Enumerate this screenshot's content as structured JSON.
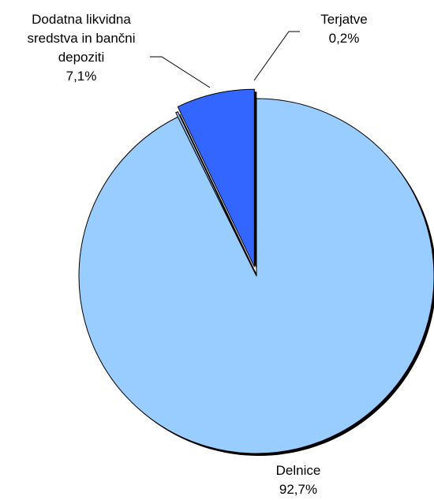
{
  "chart_data": {
    "type": "pie",
    "title": "",
    "slices": [
      {
        "label_lines": [
          "Delnice"
        ],
        "value_label": "92,7%",
        "value": 92.7,
        "color": "#99ccff",
        "exploded": false
      },
      {
        "label_lines": [
          "Terjatve"
        ],
        "value_label": "0,2%",
        "value": 0.2,
        "color": "#99ccff",
        "exploded": true
      },
      {
        "label_lines": [
          "Dodatna likvidna",
          "sredstva in bančni",
          "depoziti"
        ],
        "value_label": "7,1%",
        "value": 7.1,
        "color": "#3366ff",
        "exploded": true
      }
    ],
    "start_angle_deg": 0,
    "direction": "clockwise",
    "legend": "none"
  }
}
